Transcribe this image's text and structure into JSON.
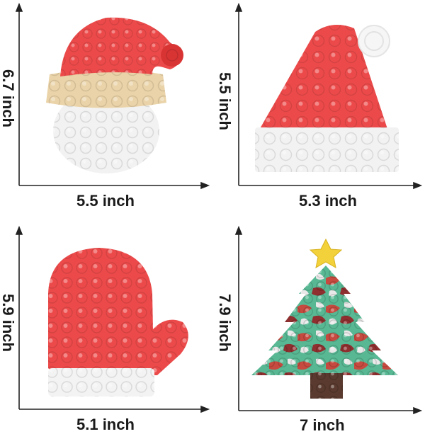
{
  "items": [
    {
      "name": "santa-face",
      "width_label": "5.5 inch",
      "height_label": "6.7 inch"
    },
    {
      "name": "santa-hat",
      "width_label": "5.3 inch",
      "height_label": "5.5 inch"
    },
    {
      "name": "mitten",
      "width_label": "5.1 inch",
      "height_label": "5.9 inch"
    },
    {
      "name": "christmas-tree",
      "width_label": "7 inch",
      "height_label": "7.9 inch"
    }
  ],
  "colors": {
    "red": "#ec4a4a",
    "red_dark": "#d93434",
    "white": "#f4f4f4",
    "beige": "#ead3a8",
    "green": "#58b894",
    "brown": "#5a3a2e",
    "star": "#f2d13a",
    "axis": "#222222"
  }
}
